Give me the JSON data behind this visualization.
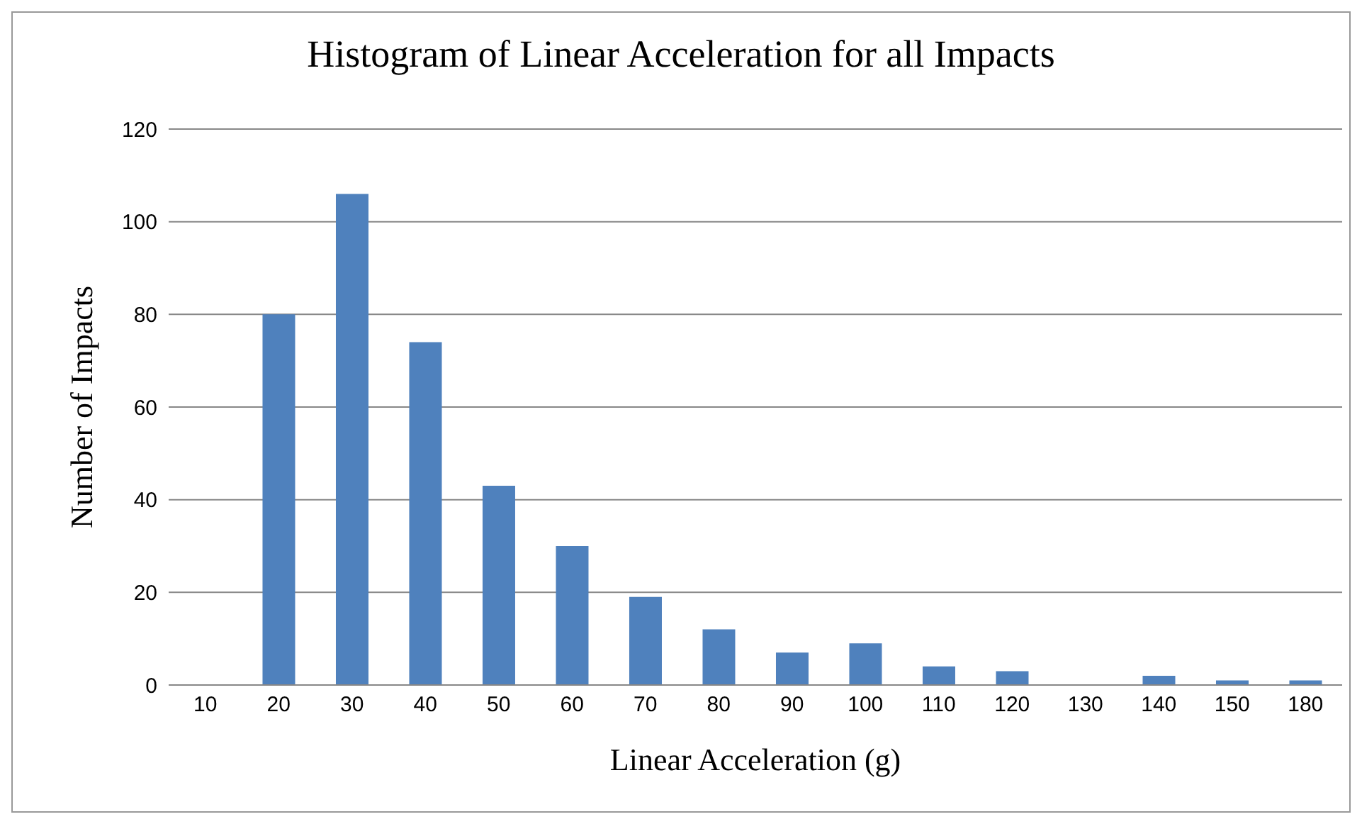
{
  "chart_data": {
    "type": "bar",
    "title": "Histogram of Linear Acceleration for all Impacts",
    "xlabel": "Linear Acceleration (g)",
    "ylabel": "Number of Impacts",
    "categories": [
      "10",
      "20",
      "30",
      "40",
      "50",
      "60",
      "70",
      "80",
      "90",
      "100",
      "110",
      "120",
      "130",
      "140",
      "150",
      "180"
    ],
    "values": [
      0,
      80,
      106,
      74,
      43,
      30,
      19,
      12,
      7,
      9,
      4,
      3,
      0,
      2,
      1,
      1
    ],
    "color": "#4f81bd",
    "ylim": [
      0,
      120
    ],
    "yticks": [
      0,
      20,
      40,
      60,
      80,
      100,
      120
    ],
    "grid": "y"
  }
}
